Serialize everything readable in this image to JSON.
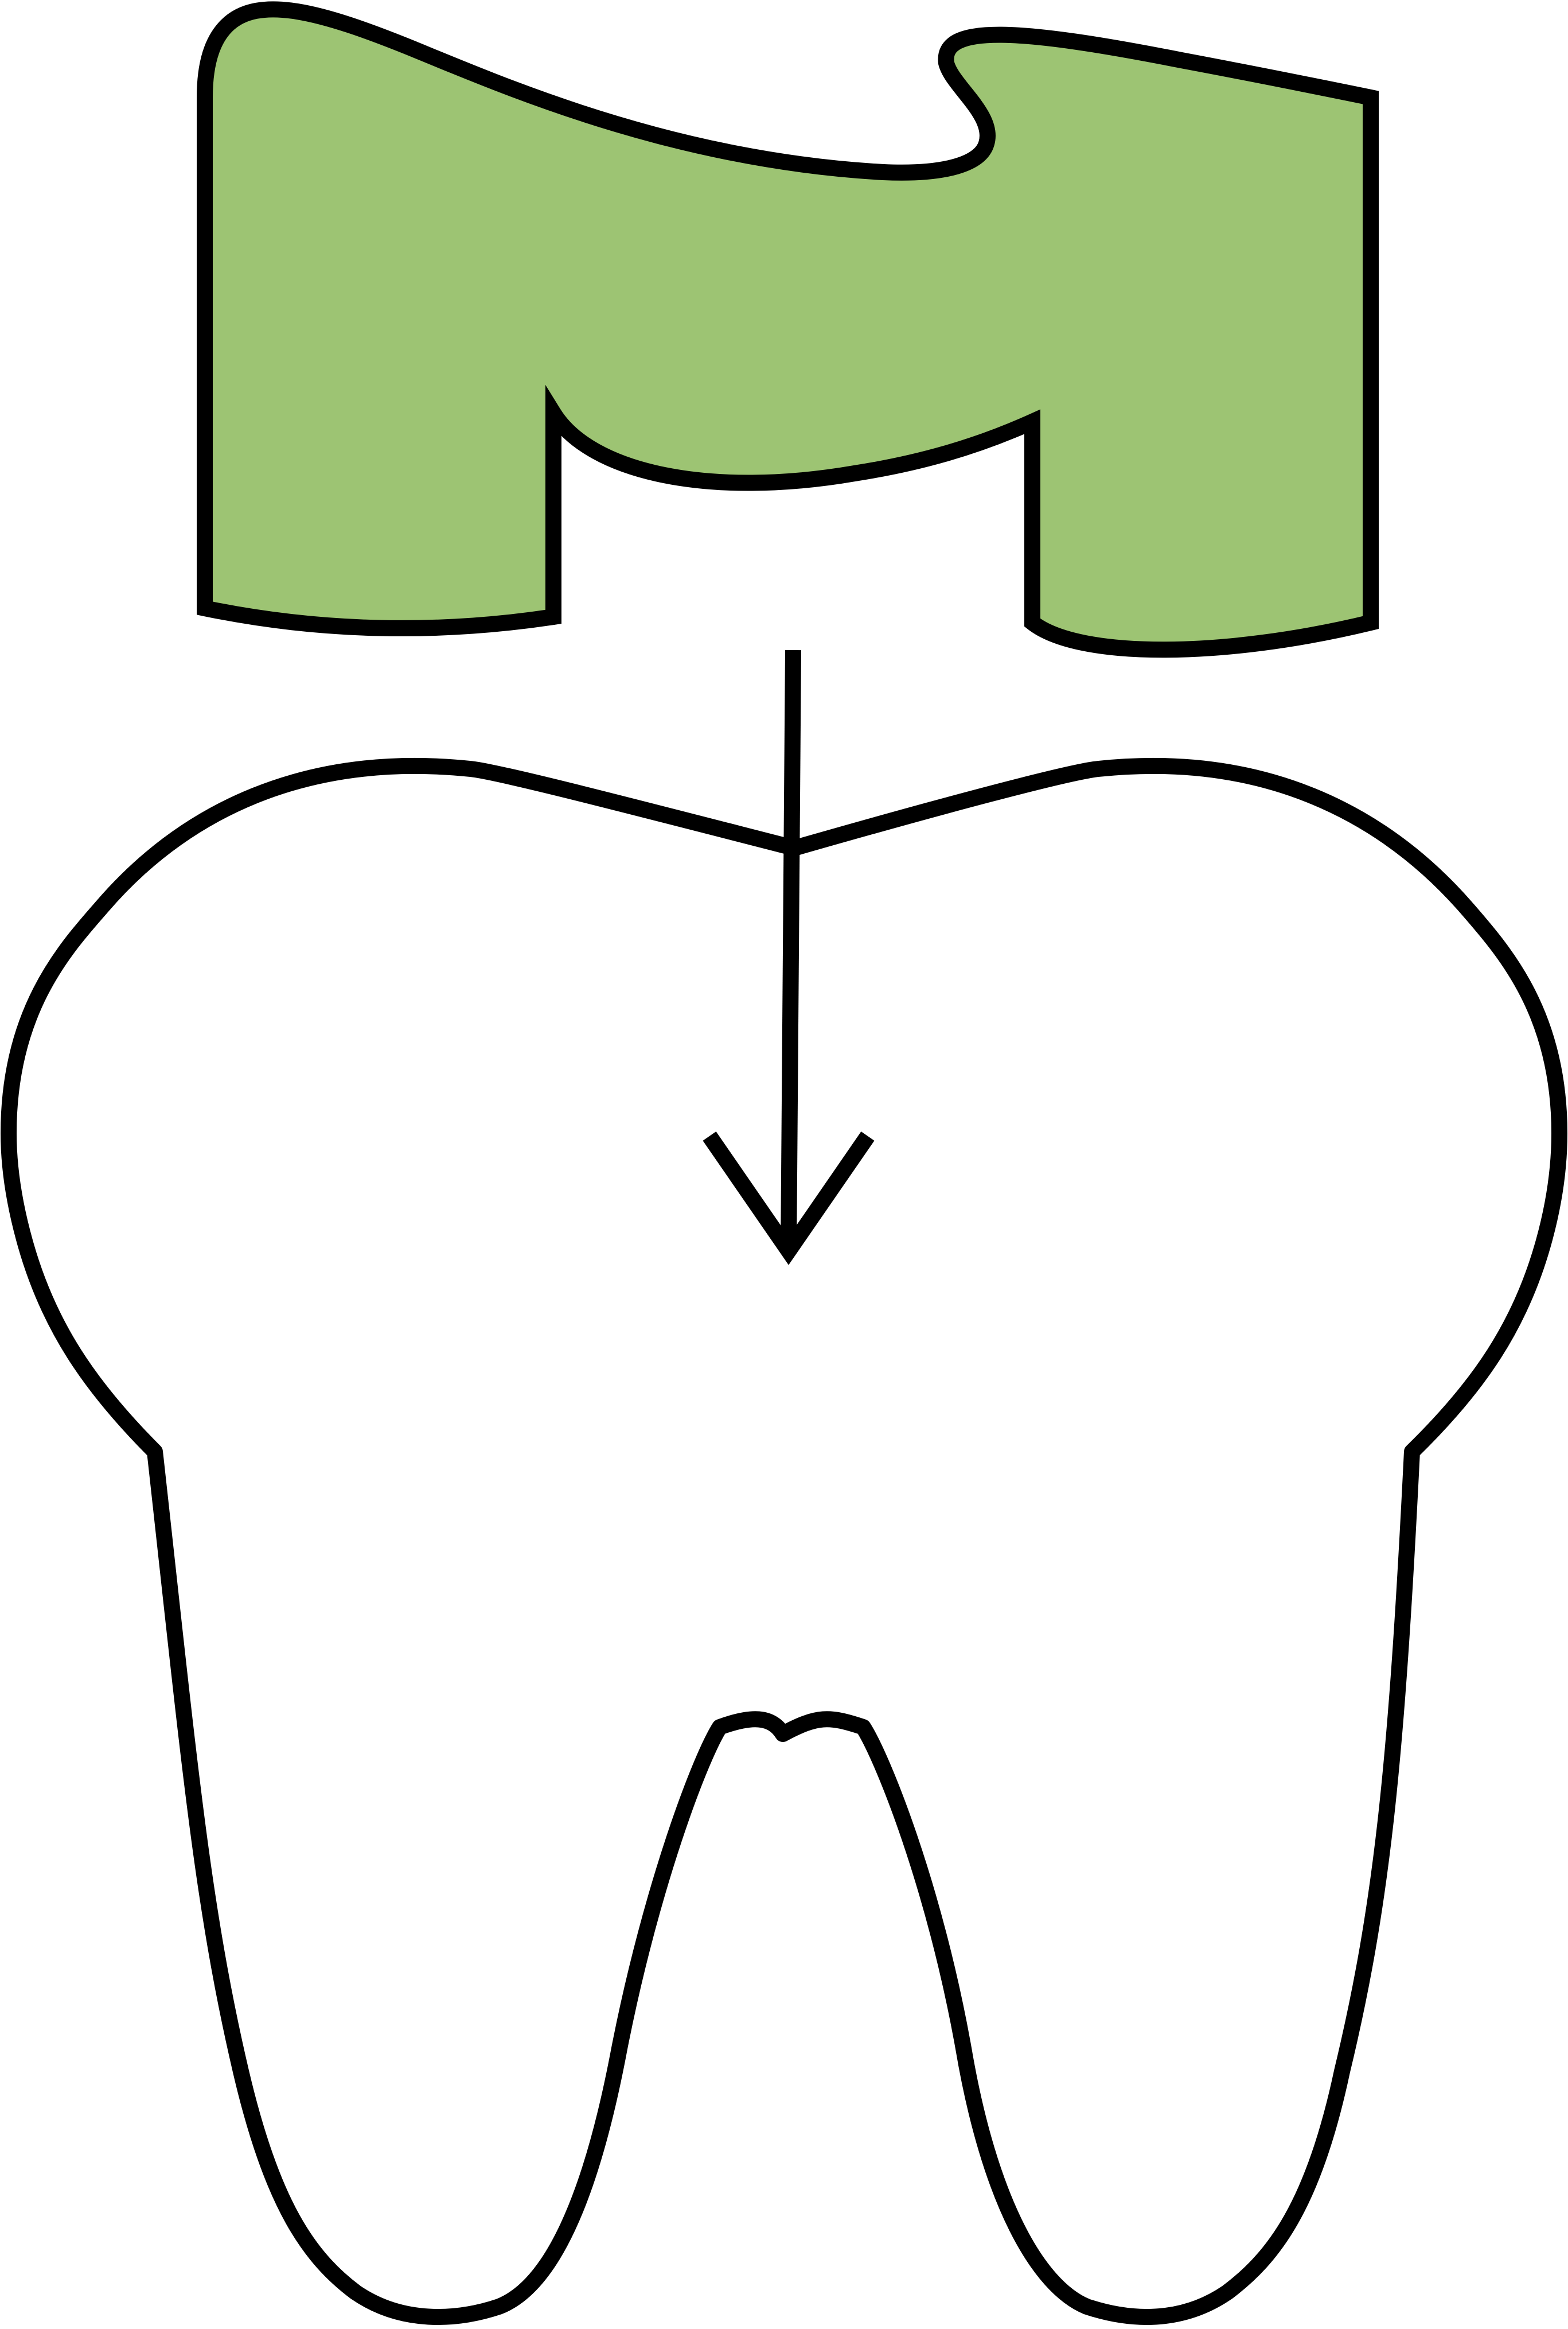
{
  "diagram": {
    "kind": "dental crown being placed onto a prepared tooth",
    "colors": {
      "background": "#ffffff",
      "crown_fill": "#9dc473",
      "stroke": "#000000",
      "tooth_fill": "#ffffff"
    },
    "parts": [
      {
        "id": "crown",
        "icon": "crown-icon"
      },
      {
        "id": "arrow",
        "icon": "arrow-down-icon",
        "direction": "down"
      },
      {
        "id": "tooth",
        "icon": "tooth-icon"
      }
    ]
  }
}
